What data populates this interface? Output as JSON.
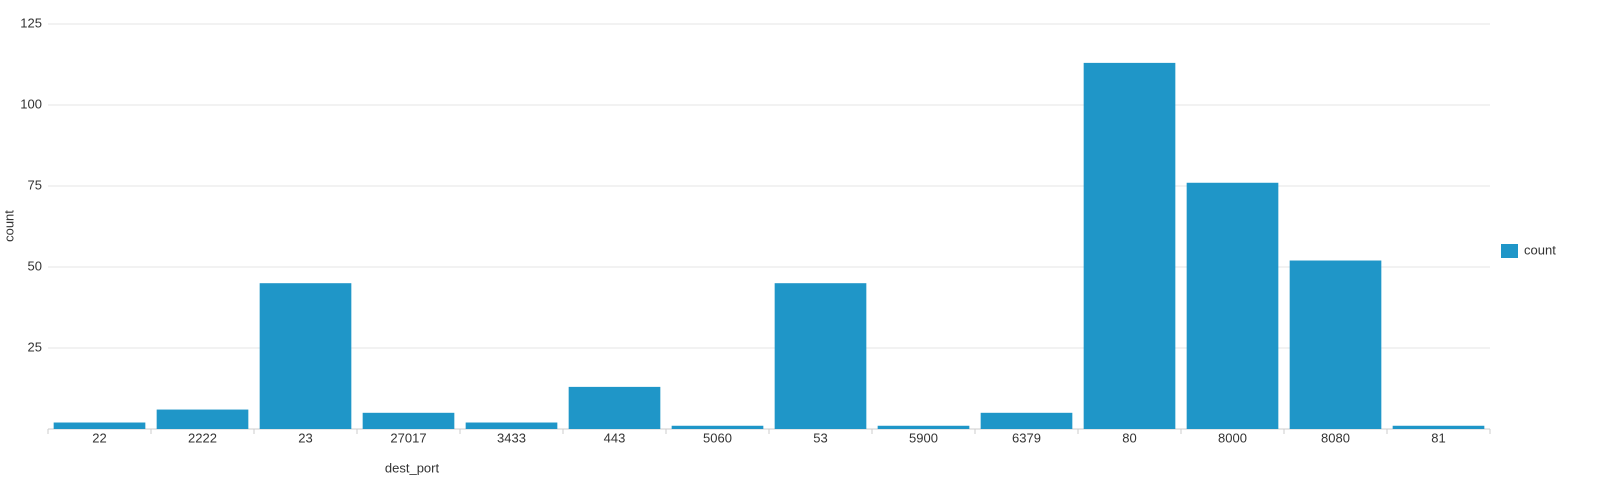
{
  "chart_data": {
    "type": "bar",
    "x_label": "dest_port",
    "y_label": "count",
    "categories": [
      "22",
      "2222",
      "23",
      "27017",
      "3433",
      "443",
      "5060",
      "53",
      "5900",
      "6379",
      "80",
      "8000",
      "8080",
      "81"
    ],
    "series": [
      {
        "name": "count",
        "color": "#1f96c8",
        "values": [
          2,
          6,
          45,
          5,
          2,
          13,
          1,
          45,
          1,
          5,
          113,
          76,
          52,
          1
        ]
      }
    ],
    "ylim": [
      0,
      125
    ],
    "yticks": [
      25,
      50,
      75,
      100,
      125
    ],
    "grid": true,
    "legend": "right"
  }
}
